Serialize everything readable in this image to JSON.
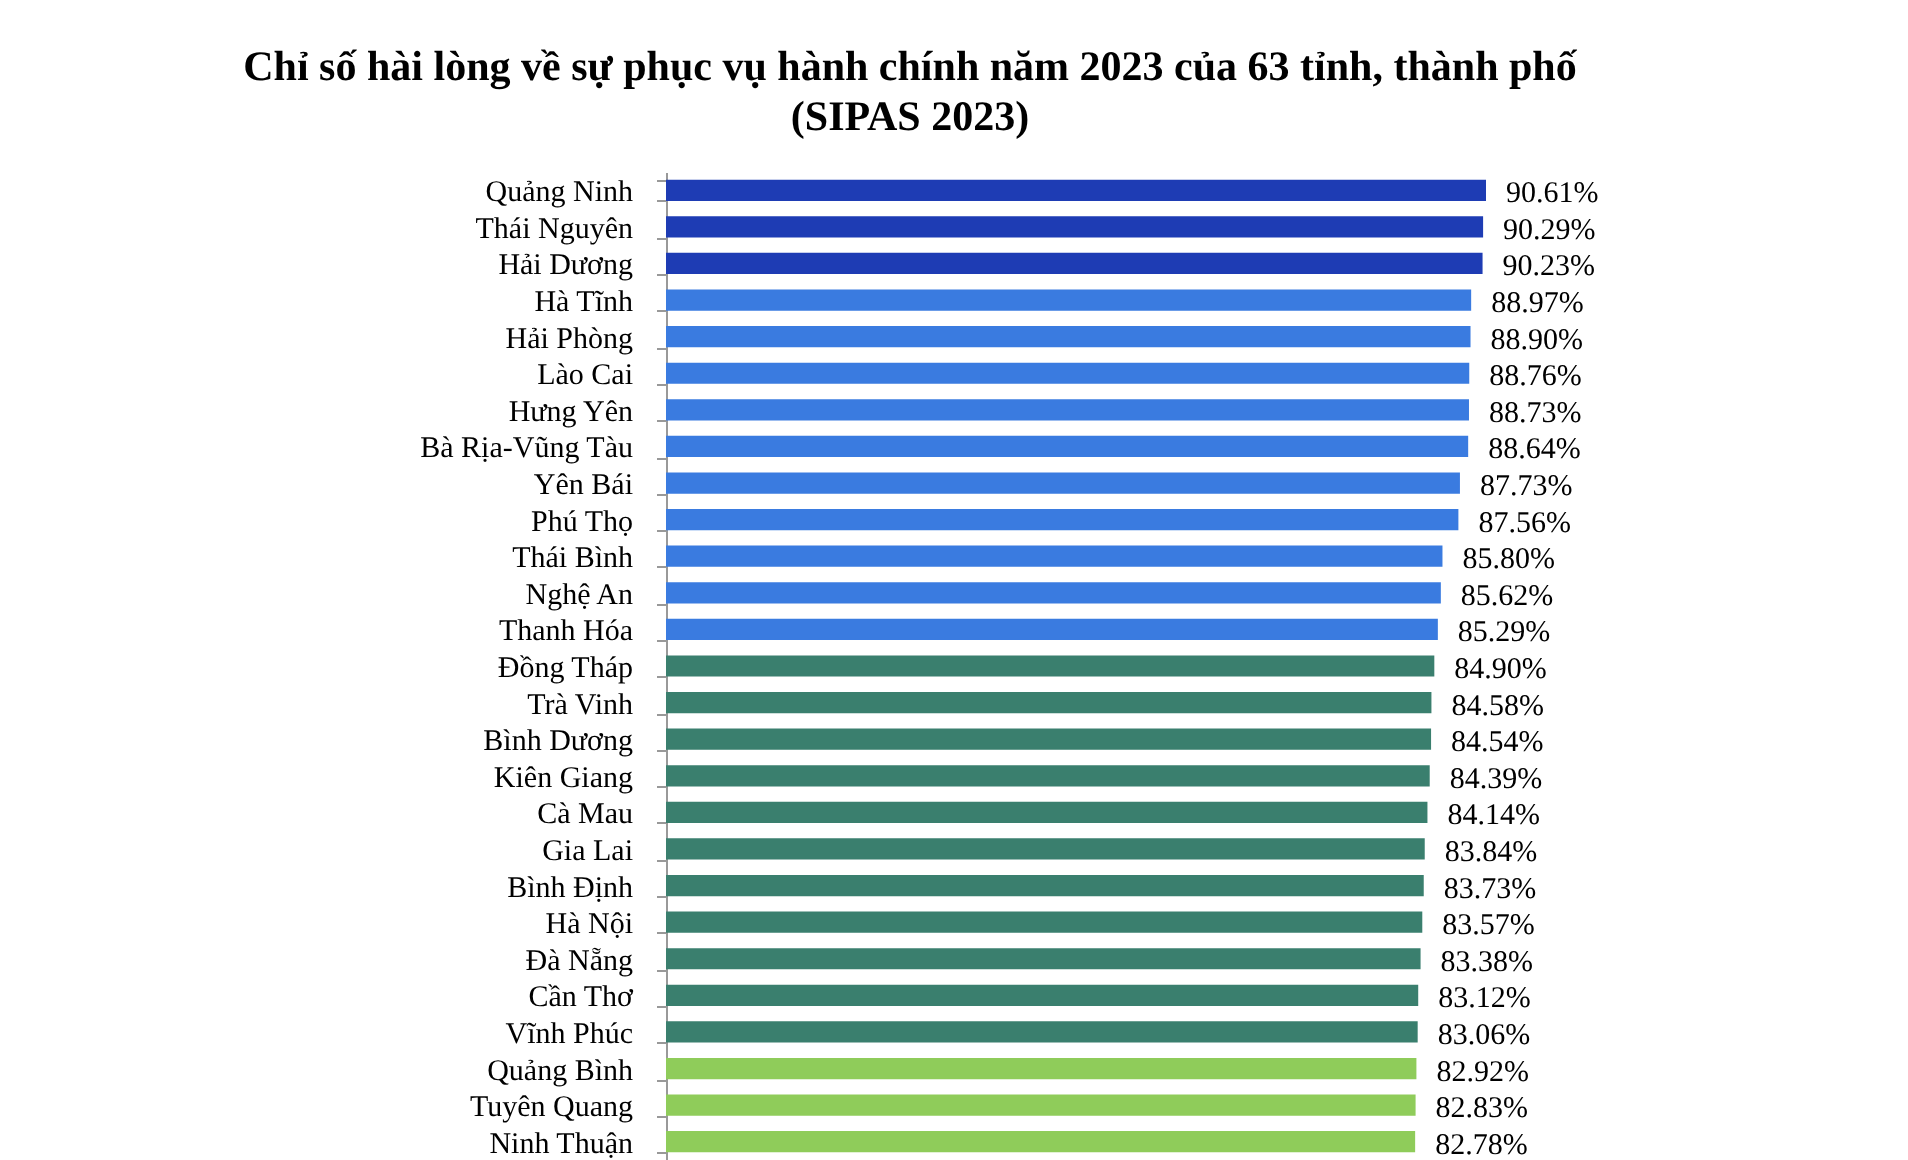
{
  "chart_data": {
    "type": "bar",
    "orientation": "horizontal",
    "title": [
      "Chỉ số hài lòng về sự phục vụ hành chính năm 2023 của 63 tỉnh, thành phố",
      "(SIPAS 2023)"
    ],
    "categories": [
      "Quảng Ninh",
      "Thái Nguyên",
      "Hải Dương",
      "Hà Tĩnh",
      "Hải Phòng",
      "Lào Cai",
      "Hưng Yên",
      "Bà Rịa-Vũng Tàu",
      "Yên Bái",
      "Phú Thọ",
      "Thái Bình",
      "Nghệ An",
      "Thanh Hóa",
      "Đồng Tháp",
      "Trà Vinh",
      "Bình Dương",
      "Kiên Giang",
      "Cà Mau",
      "Gia Lai",
      "Bình Định",
      "Hà Nội",
      "Đà Nẵng",
      "Cần Thơ",
      "Vĩnh Phúc",
      "Quảng Bình",
      "Tuyên Quang",
      "Ninh Thuận"
    ],
    "values": [
      90.61,
      90.29,
      90.23,
      88.97,
      88.9,
      88.76,
      88.73,
      88.64,
      87.73,
      87.56,
      85.8,
      85.62,
      85.29,
      84.9,
      84.58,
      84.54,
      84.39,
      84.14,
      83.84,
      83.73,
      83.57,
      83.38,
      83.12,
      83.06,
      82.92,
      82.83,
      82.78
    ],
    "value_labels": [
      "90.61%",
      "90.29%",
      "90.23%",
      "88.97%",
      "88.90%",
      "88.76%",
      "88.73%",
      "88.64%",
      "87.73%",
      "87.56%",
      "85.80%",
      "85.62%",
      "85.29%",
      "84.90%",
      "84.58%",
      "84.54%",
      "84.39%",
      "84.14%",
      "83.84%",
      "83.73%",
      "83.57%",
      "83.38%",
      "83.12%",
      "83.06%",
      "82.92%",
      "82.83%",
      "82.78%"
    ],
    "colors": [
      "#1e3cb4",
      "#1e3cb4",
      "#1e3cb4",
      "#3a7be0",
      "#3a7be0",
      "#3a7be0",
      "#3a7be0",
      "#3a7be0",
      "#3a7be0",
      "#3a7be0",
      "#3a7be0",
      "#3a7be0",
      "#3a7be0",
      "#3a7f6e",
      "#3a7f6e",
      "#3a7f6e",
      "#3a7f6e",
      "#3a7f6e",
      "#3a7f6e",
      "#3a7f6e",
      "#3a7f6e",
      "#3a7f6e",
      "#3a7f6e",
      "#3a7f6e",
      "#8fcc5a",
      "#8fcc5a",
      "#8fcc5a"
    ],
    "tick_labels": "y"
  }
}
